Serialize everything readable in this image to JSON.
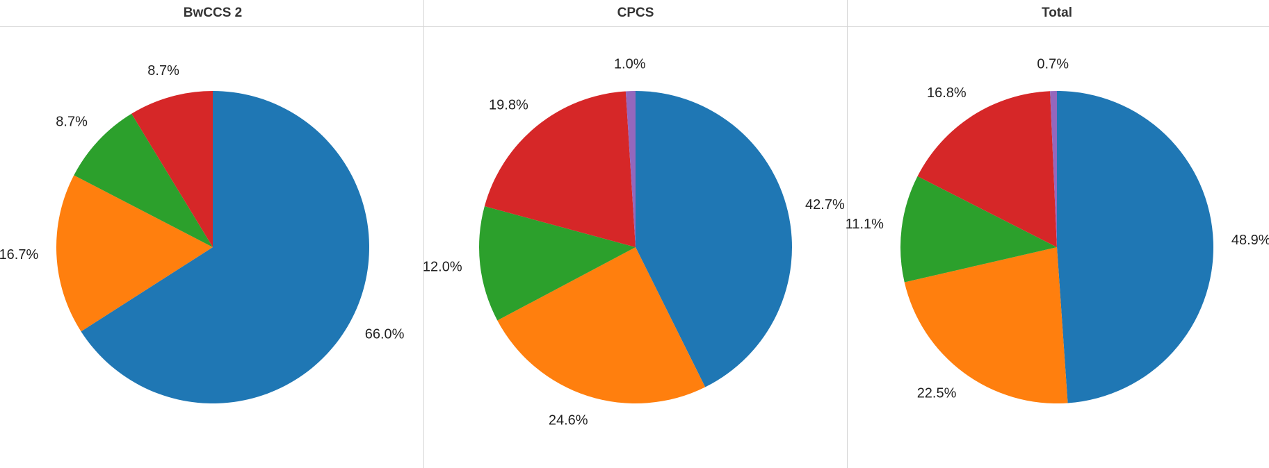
{
  "chart_data": [
    {
      "type": "pie",
      "title": "BwCCS 2",
      "values": [
        66.0,
        16.7,
        8.7,
        8.7
      ],
      "value_labels": [
        "66.0%",
        "16.7%",
        "8.7%",
        "8.7%"
      ],
      "colors": [
        "#1f77b4",
        "#ff7f0e",
        "#2ca02c",
        "#d62728"
      ]
    },
    {
      "type": "pie",
      "title": "CPCS",
      "values": [
        42.7,
        24.6,
        12.0,
        19.8,
        1.0
      ],
      "value_labels": [
        "42.7%",
        "24.6%",
        "12.0%",
        "19.8%",
        "1.0%"
      ],
      "colors": [
        "#1f77b4",
        "#ff7f0e",
        "#2ca02c",
        "#d62728",
        "#9467bd"
      ]
    },
    {
      "type": "pie",
      "title": "Total",
      "values": [
        48.9,
        22.5,
        11.1,
        16.8,
        0.7
      ],
      "value_labels": [
        "48.9%",
        "22.5%",
        "11.1%",
        "16.8%",
        "0.7%"
      ],
      "colors": [
        "#1f77b4",
        "#ff7f0e",
        "#2ca02c",
        "#d62728",
        "#9467bd"
      ]
    }
  ]
}
